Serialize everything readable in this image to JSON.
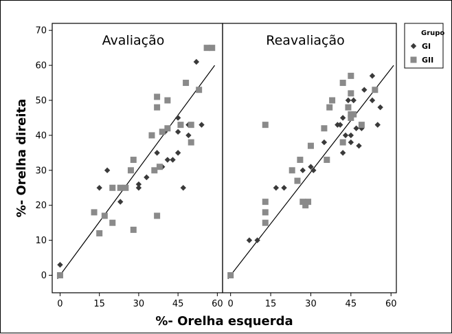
{
  "chart_data": {
    "type": "scatter",
    "xlabel": "%- Orelha esquerda",
    "ylabel": "%- Orelha direita",
    "xlim": [
      -3,
      62
    ],
    "ylim": [
      -5,
      72
    ],
    "xticks": [
      0,
      15,
      30,
      45,
      60
    ],
    "yticks": [
      0,
      10,
      20,
      30,
      40,
      50,
      60,
      70
    ],
    "xtick_labels": [
      "0",
      "15",
      "30",
      "45",
      "60"
    ],
    "ytick_labels": [
      "0",
      "10",
      "20",
      "30",
      "40",
      "50",
      "60",
      "70"
    ],
    "grid": false,
    "legend_position": "top-right",
    "legend": {
      "title": "Grupo",
      "entries": [
        {
          "label": "GI",
          "marker": "diamond",
          "color": "#3a3a3a"
        },
        {
          "label": "GII",
          "marker": "square",
          "color": "#8a8a8a"
        }
      ]
    },
    "panels": [
      {
        "title": "Avaliação",
        "fit_line": {
          "from": [
            -1,
            -1
          ],
          "to": [
            59,
            60
          ]
        },
        "series": [
          {
            "name": "GI",
            "points": [
              [
                0,
                3
              ],
              [
                15,
                25
              ],
              [
                18,
                30
              ],
              [
                23,
                21
              ],
              [
                25,
                25
              ],
              [
                30,
                26
              ],
              [
                30,
                25
              ],
              [
                33,
                28
              ],
              [
                35,
                40
              ],
              [
                37,
                35
              ],
              [
                38,
                31
              ],
              [
                39,
                31
              ],
              [
                40,
                41
              ],
              [
                41,
                33
              ],
              [
                43,
                33
              ],
              [
                45,
                45
              ],
              [
                45,
                41
              ],
              [
                45,
                35
              ],
              [
                47,
                25
              ],
              [
                49,
                40
              ],
              [
                49,
                43
              ],
              [
                50,
                43
              ],
              [
                52,
                61
              ],
              [
                54,
                43
              ],
              [
                56,
                65
              ]
            ]
          },
          {
            "name": "GII",
            "points": [
              [
                0,
                0
              ],
              [
                13,
                18
              ],
              [
                15,
                12
              ],
              [
                17,
                17
              ],
              [
                20,
                15
              ],
              [
                20,
                25
              ],
              [
                23,
                25
              ],
              [
                25,
                25
              ],
              [
                27,
                30
              ],
              [
                28,
                33
              ],
              [
                28,
                13
              ],
              [
                35,
                40
              ],
              [
                36,
                30
              ],
              [
                37,
                17
              ],
              [
                37,
                48
              ],
              [
                37,
                51
              ],
              [
                38,
                31
              ],
              [
                39,
                41
              ],
              [
                41,
                42
              ],
              [
                41,
                50
              ],
              [
                46,
                43
              ],
              [
                48,
                55
              ],
              [
                50,
                43
              ],
              [
                50,
                38
              ],
              [
                53,
                53
              ],
              [
                56,
                65
              ],
              [
                58,
                65
              ]
            ]
          }
        ]
      },
      {
        "title": "Reavaliação",
        "fit_line": {
          "from": [
            -1,
            -1
          ],
          "to": [
            61,
            60
          ]
        },
        "series": [
          {
            "name": "GI",
            "points": [
              [
                7,
                10
              ],
              [
                10,
                10
              ],
              [
                17,
                25
              ],
              [
                20,
                25
              ],
              [
                27,
                30
              ],
              [
                30,
                31
              ],
              [
                31,
                30
              ],
              [
                35,
                38
              ],
              [
                40,
                43
              ],
              [
                41,
                43
              ],
              [
                42,
                35
              ],
              [
                42,
                45
              ],
              [
                43,
                40
              ],
              [
                44,
                50
              ],
              [
                45,
                38
              ],
              [
                45,
                40
              ],
              [
                46,
                50
              ],
              [
                47,
                42
              ],
              [
                48,
                37
              ],
              [
                49,
                42
              ],
              [
                50,
                53
              ],
              [
                53,
                57
              ],
              [
                53,
                50
              ],
              [
                55,
                43
              ],
              [
                56,
                48
              ]
            ]
          },
          {
            "name": "GII",
            "points": [
              [
                0,
                0
              ],
              [
                13,
                43
              ],
              [
                13,
                21
              ],
              [
                13,
                18
              ],
              [
                13,
                15
              ],
              [
                23,
                30
              ],
              [
                25,
                27
              ],
              [
                26,
                33
              ],
              [
                27,
                21
              ],
              [
                28,
                20
              ],
              [
                29,
                21
              ],
              [
                30,
                37
              ],
              [
                35,
                42
              ],
              [
                36,
                33
              ],
              [
                37,
                48
              ],
              [
                38,
                50
              ],
              [
                42,
                55
              ],
              [
                42,
                38
              ],
              [
                44,
                48
              ],
              [
                45,
                45
              ],
              [
                45,
                46
              ],
              [
                46,
                46
              ],
              [
                45,
                52
              ],
              [
                45,
                57
              ],
              [
                49,
                43
              ],
              [
                54,
                53
              ]
            ]
          }
        ]
      }
    ]
  }
}
